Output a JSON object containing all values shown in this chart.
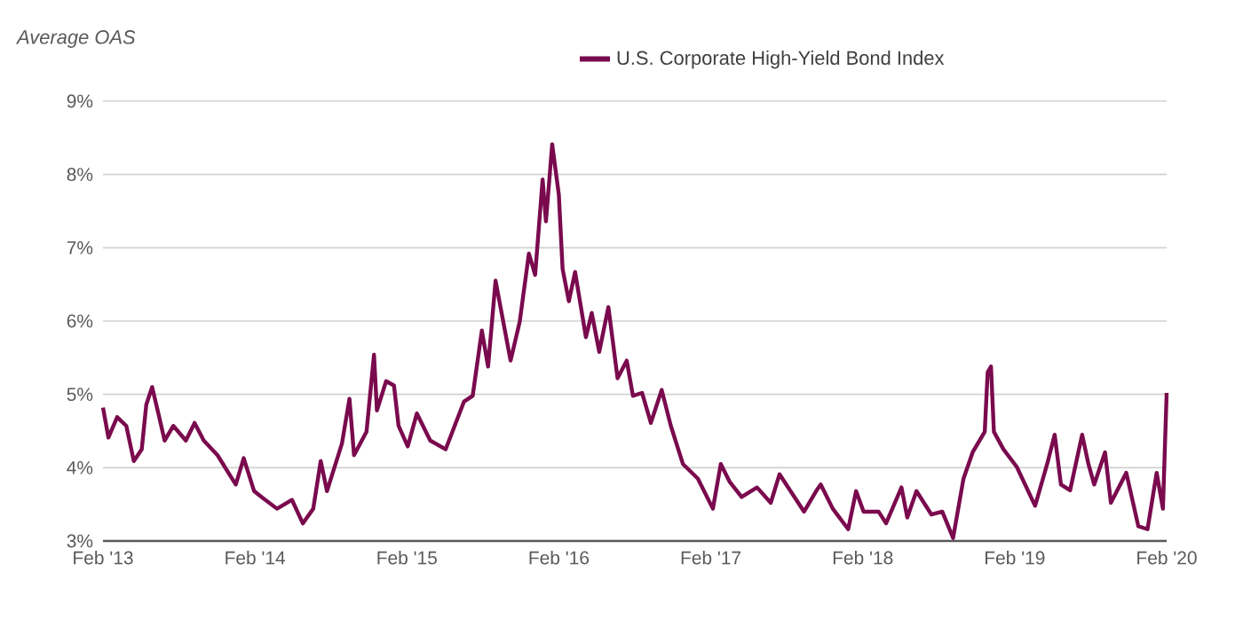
{
  "chart_data": {
    "type": "line",
    "ylabel": "Average OAS",
    "legend": "top",
    "grid": "y",
    "xlim": [
      "2013-02-01",
      "2020-02-01"
    ],
    "ylim": [
      3,
      9
    ],
    "xticks": [
      {
        "value": "2013-02-01",
        "label": "Feb '13"
      },
      {
        "value": "2014-02-01",
        "label": "Feb '14"
      },
      {
        "value": "2015-02-01",
        "label": "Feb '15"
      },
      {
        "value": "2016-02-01",
        "label": "Feb '16"
      },
      {
        "value": "2017-02-01",
        "label": "Feb '17"
      },
      {
        "value": "2018-02-01",
        "label": "Feb '18"
      },
      {
        "value": "2019-02-01",
        "label": "Feb '19"
      },
      {
        "value": "2020-02-01",
        "label": "Feb '20"
      }
    ],
    "yticks": [
      {
        "value": 3,
        "label": "3%"
      },
      {
        "value": 4,
        "label": "4%"
      },
      {
        "value": 5,
        "label": "5%"
      },
      {
        "value": 6,
        "label": "6%"
      },
      {
        "value": 7,
        "label": "7%"
      },
      {
        "value": 8,
        "label": "8%"
      },
      {
        "value": 9,
        "label": "9%"
      }
    ],
    "series": [
      {
        "name": "U.S. Corporate High-Yield Bond Index",
        "color": "#7a0a4e",
        "x": [
          "2013-02-01",
          "2013-02-14",
          "2013-03-07",
          "2013-03-29",
          "2013-04-16",
          "2013-05-05",
          "2013-05-16",
          "2013-05-30",
          "2013-06-14",
          "2013-06-29",
          "2013-07-20",
          "2013-08-19",
          "2013-09-09",
          "2013-10-01",
          "2013-11-03",
          "2013-12-17",
          "2014-01-05",
          "2014-01-30",
          "2014-02-17",
          "2014-03-26",
          "2014-05-01",
          "2014-05-27",
          "2014-06-21",
          "2014-07-09",
          "2014-07-24",
          "2014-08-29",
          "2014-09-16",
          "2014-09-27",
          "2014-10-27",
          "2014-11-14",
          "2014-11-21",
          "2014-12-13",
          "2015-01-01",
          "2015-01-12",
          "2015-02-03",
          "2015-02-25",
          "2015-03-29",
          "2015-05-05",
          "2015-06-18",
          "2015-07-09",
          "2015-07-31",
          "2015-08-15",
          "2015-09-02",
          "2015-10-08",
          "2015-10-30",
          "2015-11-21",
          "2015-12-06",
          "2015-12-24",
          "2016-01-01",
          "2016-01-16",
          "2016-02-01",
          "2016-02-10",
          "2016-02-25",
          "2016-03-11",
          "2016-04-06",
          "2016-04-20",
          "2016-05-08",
          "2016-05-30",
          "2016-06-21",
          "2016-07-13",
          "2016-07-28",
          "2016-08-19",
          "2016-09-09",
          "2016-10-05",
          "2016-10-27",
          "2016-11-25",
          "2017-01-01",
          "2017-02-06",
          "2017-02-25",
          "2017-03-18",
          "2017-04-16",
          "2017-05-23",
          "2017-06-25",
          "2017-07-16",
          "2017-08-15",
          "2017-09-13",
          "2017-10-12",
          "2017-10-23",
          "2017-11-21",
          "2017-12-28",
          "2018-01-16",
          "2018-02-03",
          "2018-03-11",
          "2018-03-29",
          "2018-05-05",
          "2018-05-19",
          "2018-06-10",
          "2018-07-16",
          "2018-08-11",
          "2018-09-06",
          "2018-10-01",
          "2018-10-23",
          "2018-11-21",
          "2018-11-28",
          "2018-12-06",
          "2018-12-13",
          "2019-01-05",
          "2019-02-06",
          "2019-03-22",
          "2019-04-20",
          "2019-05-08",
          "2019-05-23",
          "2019-06-14",
          "2019-07-13",
          "2019-07-28",
          "2019-08-11",
          "2019-09-06",
          "2019-09-20",
          "2019-10-27",
          "2019-11-25",
          "2019-12-17",
          "2020-01-08",
          "2020-01-23",
          "2020-02-01"
        ],
        "values": [
          4.82,
          4.41,
          4.69,
          4.57,
          4.09,
          4.25,
          4.86,
          5.1,
          4.74,
          4.37,
          4.57,
          4.37,
          4.61,
          4.37,
          4.17,
          3.77,
          4.13,
          3.68,
          3.6,
          3.44,
          3.56,
          3.24,
          3.44,
          4.09,
          3.68,
          4.33,
          4.94,
          4.17,
          4.49,
          5.54,
          4.78,
          5.18,
          5.12,
          4.57,
          4.29,
          4.74,
          4.37,
          4.25,
          4.9,
          4.98,
          5.87,
          5.38,
          6.55,
          5.46,
          5.99,
          6.92,
          6.63,
          7.93,
          7.36,
          8.41,
          7.72,
          6.71,
          6.27,
          6.67,
          5.78,
          6.11,
          5.58,
          6.19,
          5.22,
          5.46,
          4.98,
          5.02,
          4.61,
          5.06,
          4.57,
          4.05,
          3.85,
          3.44,
          4.05,
          3.81,
          3.6,
          3.73,
          3.52,
          3.91,
          3.65,
          3.4,
          3.68,
          3.77,
          3.44,
          3.16,
          3.68,
          3.4,
          3.4,
          3.24,
          3.73,
          3.32,
          3.68,
          3.36,
          3.4,
          3.04,
          3.85,
          4.21,
          4.49,
          5.3,
          5.38,
          4.49,
          4.25,
          4.01,
          3.48,
          4.05,
          4.45,
          3.77,
          3.69,
          4.45,
          4.05,
          3.77,
          4.21,
          3.52,
          3.93,
          3.2,
          3.16,
          3.93,
          3.44,
          5.02
        ]
      }
    ]
  }
}
